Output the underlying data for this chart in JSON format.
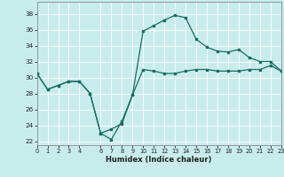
{
  "xlabel": "Humidex (Indice chaleur)",
  "bg_color": "#c8ecec",
  "grid_color": "#b0d8d8",
  "line_color": "#1a6b60",
  "xlim": [
    0,
    23
  ],
  "ylim": [
    21.5,
    39.5
  ],
  "xticks": [
    0,
    1,
    2,
    3,
    4,
    6,
    7,
    8,
    9,
    10,
    11,
    12,
    13,
    14,
    15,
    16,
    17,
    18,
    19,
    20,
    21,
    22,
    23
  ],
  "yticks": [
    22,
    24,
    26,
    28,
    30,
    32,
    34,
    36,
    38
  ],
  "line1_x": [
    0,
    1,
    2,
    3,
    4,
    5,
    6,
    7,
    8,
    9,
    10,
    11,
    12,
    13,
    14,
    15,
    16,
    17,
    18,
    19,
    20,
    21,
    22,
    23
  ],
  "line1_y": [
    30.5,
    28.5,
    29.0,
    29.5,
    29.5,
    28.0,
    23.0,
    22.2,
    24.5,
    27.8,
    31.0,
    30.8,
    30.5,
    30.5,
    30.8,
    31.0,
    31.0,
    30.8,
    30.8,
    30.8,
    31.0,
    31.0,
    31.5,
    30.8
  ],
  "line2_x": [
    0,
    1,
    2,
    3,
    4,
    5,
    6,
    7,
    8,
    9,
    10,
    11,
    12,
    13,
    14,
    15,
    16,
    17,
    18,
    19,
    20,
    21,
    22,
    23
  ],
  "line2_y": [
    30.5,
    28.5,
    29.0,
    29.5,
    29.5,
    28.0,
    23.0,
    23.5,
    24.2,
    27.8,
    35.8,
    36.5,
    37.2,
    37.8,
    37.5,
    34.8,
    33.8,
    33.3,
    33.2,
    33.5,
    32.5,
    32.0,
    32.0,
    30.8
  ]
}
